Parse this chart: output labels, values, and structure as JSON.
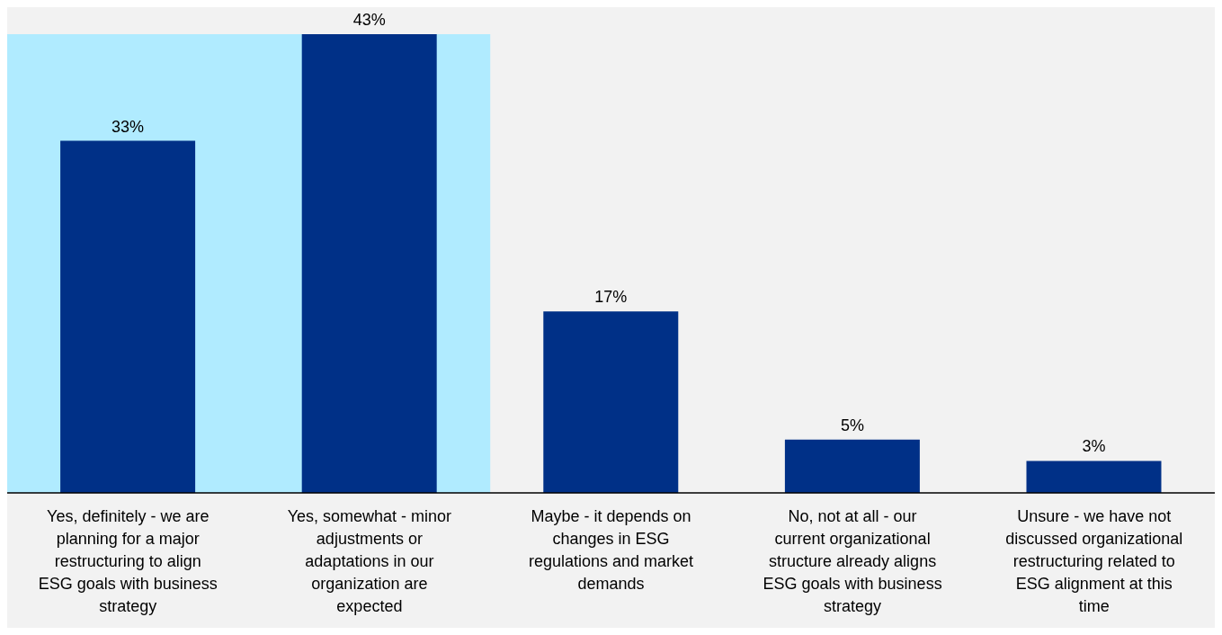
{
  "chart_data": {
    "type": "bar",
    "categories": [
      "Yes, definitely - we are planning for a major restructuring to align ESG goals with business strategy",
      "Yes, somewhat - minor adjustments or adaptations in our organization are expected",
      "Maybe - it depends on changes in ESG regulations and market demands",
      "No, not at all - our current organizational structure already aligns ESG goals with business strategy",
      "Unsure - we have not discussed organizational restructuring related to ESG alignment at this time"
    ],
    "values": [
      33,
      43,
      17,
      5,
      3
    ],
    "color": "#003087",
    "value_labels": [
      "33%",
      "43%",
      "17%",
      "5%",
      "3%"
    ],
    "bands": [
      {
        "axis": "x",
        "from": "Yes, definitely - we are planning for a major restructuring to align ESG goals with business strategy",
        "to": "Yes, somewhat - minor adjustments or adaptations in our organization are expected",
        "color": "#b0ebff"
      }
    ],
    "tick_labels": "x"
  }
}
